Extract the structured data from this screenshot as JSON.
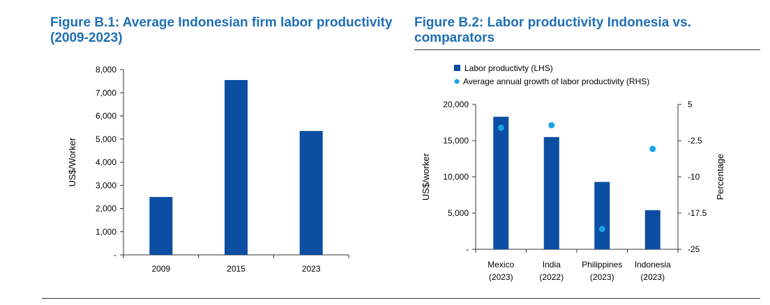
{
  "titles": {
    "fig1": "Figure  B.1: Average Indonesian firm labor productivity (2009-2023)",
    "fig2": "Figure B.2: Labor productivity Indonesia vs. comparators"
  },
  "colors": {
    "bar": "#0b4ea2",
    "dot": "#1aa3e6",
    "title": "#1f6fb5"
  },
  "chart_data": [
    {
      "type": "bar",
      "categories": [
        "2009",
        "2015",
        "2023"
      ],
      "values": [
        2500,
        7550,
        5350
      ],
      "ylabel": "US$/Worker",
      "ylim": [
        0,
        8000
      ],
      "yticks": [
        {
          "value": 0,
          "label": "-"
        },
        {
          "value": 1000,
          "label": "1,000"
        },
        {
          "value": 2000,
          "label": "2,000"
        },
        {
          "value": 3000,
          "label": "3,000"
        },
        {
          "value": 4000,
          "label": "4,000"
        },
        {
          "value": 5000,
          "label": "5,000"
        },
        {
          "value": 6000,
          "label": "6,000"
        },
        {
          "value": 7000,
          "label": "7,000"
        },
        {
          "value": 8000,
          "label": "8,000"
        }
      ],
      "grid": false
    },
    {
      "type": "bar+scatter",
      "categories": [
        {
          "line1": "Mexico",
          "line2": "(2023)"
        },
        {
          "line1": "India",
          "line2": "(2022)"
        },
        {
          "line1": "Philippines",
          "line2": "(2023)"
        },
        {
          "line1": "Indonesia",
          "line2": "(2023)"
        }
      ],
      "series": [
        {
          "name": "Labor productivty (LHS)",
          "axis": "left",
          "kind": "bar",
          "values": [
            18300,
            15500,
            9300,
            5400
          ]
        },
        {
          "name": "Average annual growth of labor productivity  (RHS)",
          "axis": "right",
          "kind": "scatter",
          "values": [
            0.2,
            0.7,
            -20.8,
            -4.2
          ]
        }
      ],
      "ylabel_left": "US$/worker",
      "ylabel_right": "Percentage",
      "ylim_left": [
        0,
        20000
      ],
      "ylim_right": [
        -25,
        5
      ],
      "yticks_left": [
        {
          "value": 0,
          "label": "-"
        },
        {
          "value": 5000,
          "label": "5,000"
        },
        {
          "value": 10000,
          "label": "10,000"
        },
        {
          "value": 15000,
          "label": "15,000"
        },
        {
          "value": 20000,
          "label": "20,000"
        }
      ],
      "yticks_right": [
        {
          "value": -25,
          "label": "-25"
        },
        {
          "value": -17.5,
          "label": "-17.5"
        },
        {
          "value": -10,
          "label": "-10"
        },
        {
          "value": -2.5,
          "label": "-2.5"
        },
        {
          "value": 5,
          "label": "5"
        }
      ],
      "legend_position": "top-left",
      "grid": false
    }
  ]
}
